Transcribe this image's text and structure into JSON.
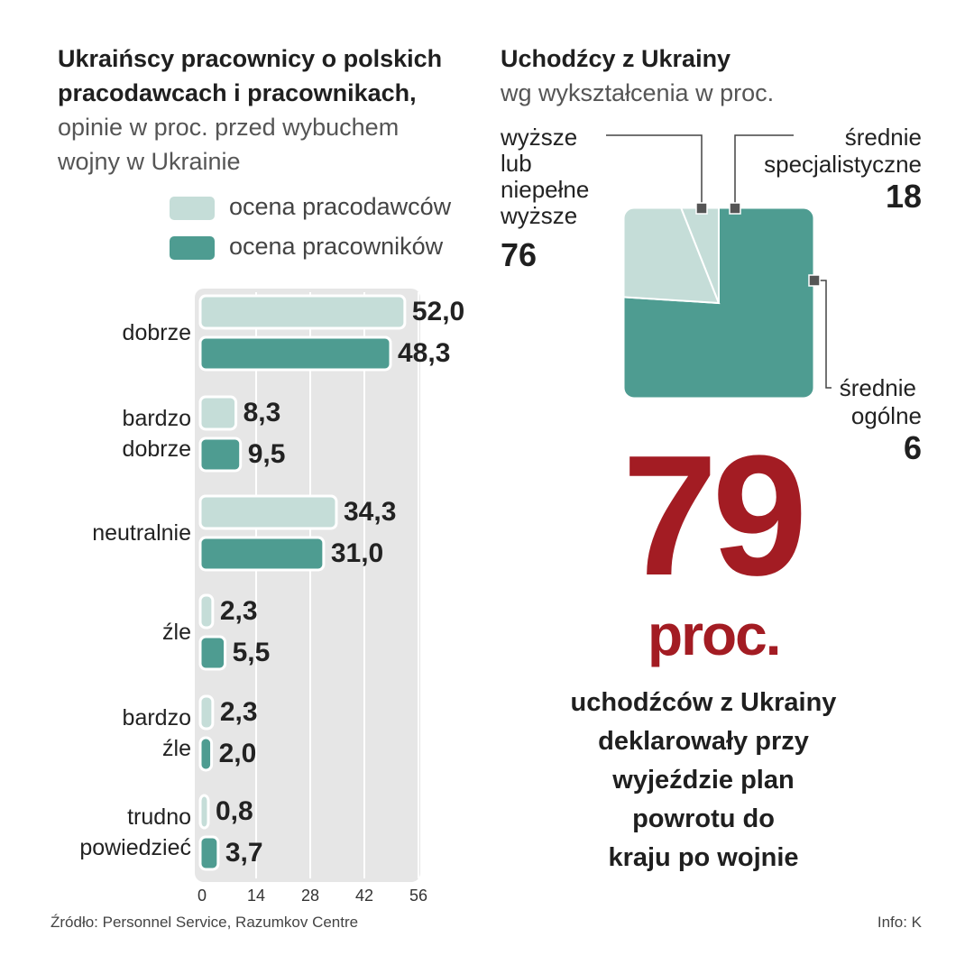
{
  "left": {
    "title_bold": [
      "Ukraińscy pracownicy o polskich",
      "pracodawcach i pracownikach,"
    ],
    "subtitle": [
      "opinie w proc. przed wybuchem",
      "wojny w Ukrainie"
    ]
  },
  "colors": {
    "light": "#c5ddd8",
    "dark": "#4e9c91",
    "accent": "#a31c23",
    "chart_bg": "#e6e6e6"
  },
  "chart_data": [
    {
      "type": "bar",
      "orientation": "horizontal",
      "categories": [
        [
          "dobrze"
        ],
        [
          "bardzo",
          "dobrze"
        ],
        [
          "neutralnie"
        ],
        [
          "źle"
        ],
        [
          "bardzo",
          "źle"
        ],
        [
          "trudno",
          "powiedzieć"
        ]
      ],
      "series": [
        {
          "name": "ocena pracodawców",
          "values": [
            52.0,
            8.3,
            34.3,
            2.3,
            2.3,
            0.8
          ],
          "labels": [
            "52,0",
            "8,3",
            "34,3",
            "2,3",
            "2,3",
            "0,8"
          ]
        },
        {
          "name": "ocena pracowników",
          "values": [
            48.3,
            9.5,
            31.0,
            5.5,
            2.0,
            3.7
          ],
          "labels": [
            "48,3",
            "9,5",
            "31,0",
            "5,5",
            "2,0",
            "3,7"
          ]
        }
      ],
      "xlim": [
        0,
        56
      ],
      "xticks": [
        0,
        14,
        28,
        42,
        56
      ],
      "legend": "top",
      "grid": true
    },
    {
      "type": "pie",
      "title": "Uchodźcy z Ukrainy",
      "subtitle": "wg wykształcenia w proc.",
      "slices": [
        {
          "label": [
            "wyższe",
            "lub",
            "niepełne",
            "wyższe"
          ],
          "value": 76
        },
        {
          "label": [
            "średnie",
            "specjalistyczne"
          ],
          "value": 18
        },
        {
          "label": [
            "średnie",
            "ogólne"
          ],
          "value": 6
        }
      ]
    }
  ],
  "highlight": {
    "number": "79",
    "unit": "proc.",
    "text": [
      "uchodźców z Ukrainy",
      "deklarowały przy",
      "wyjeździe plan",
      "powrotu do",
      "kraju po wojnie"
    ]
  },
  "footer": {
    "source": "Źródło: Personnel Service, Razumkov Centre",
    "credit": "Info: K"
  }
}
